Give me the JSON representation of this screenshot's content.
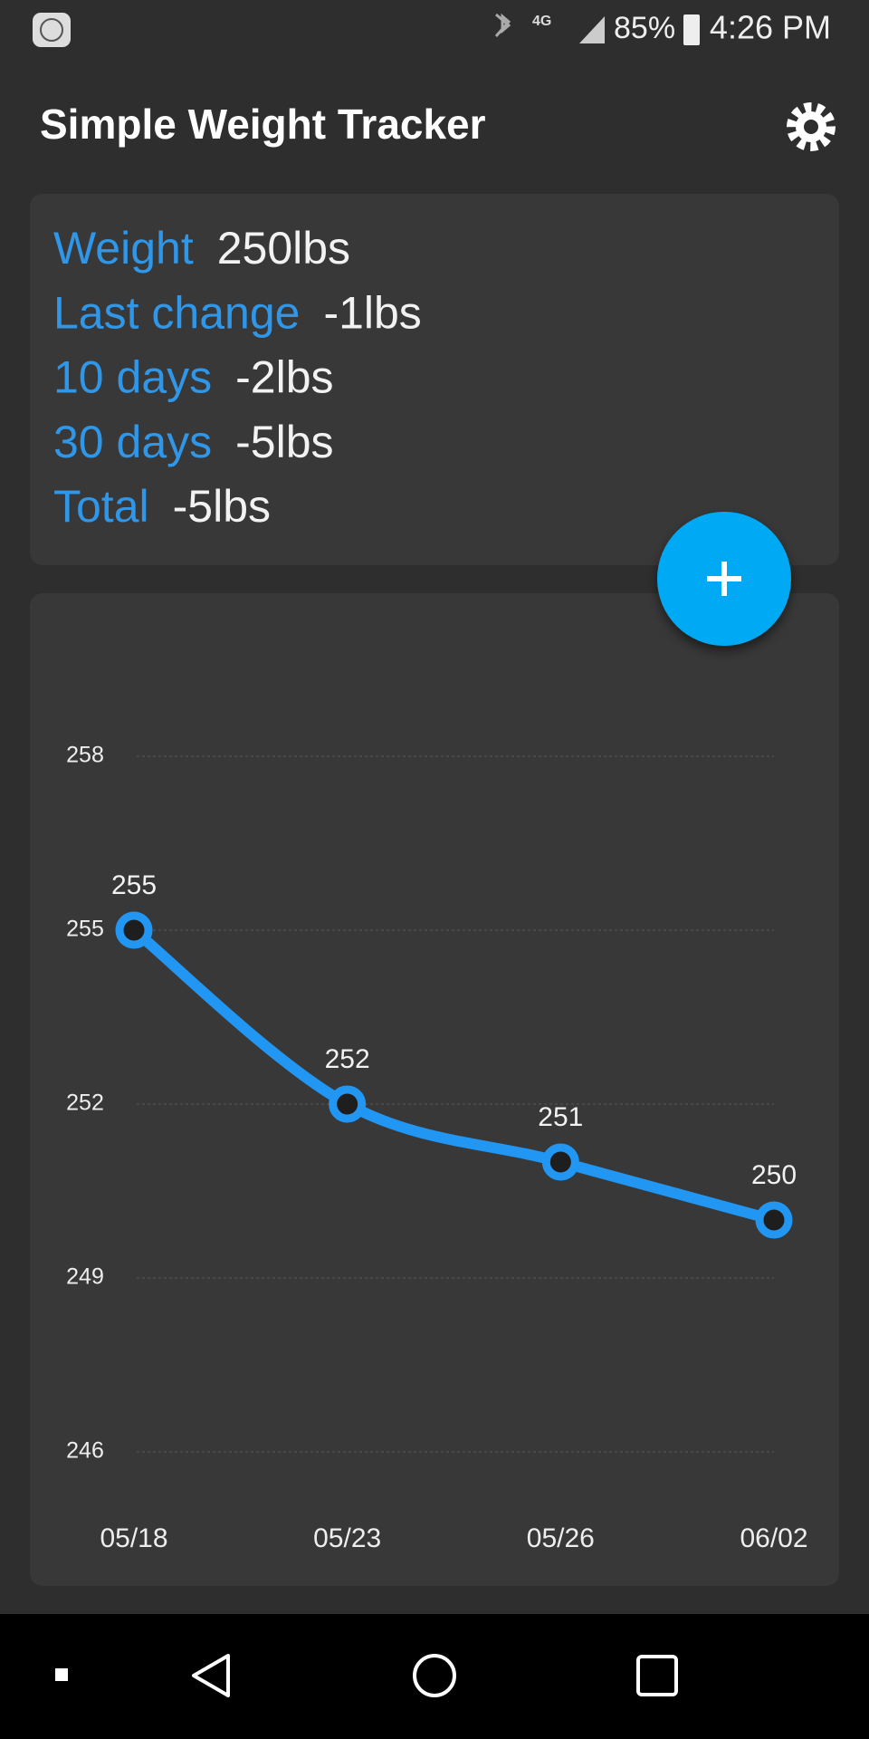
{
  "status_bar": {
    "battery": "85%",
    "time": "4:26 PM",
    "network": "4G"
  },
  "app_bar": {
    "title": "Simple Weight Tracker"
  },
  "stats": [
    {
      "label": "Weight",
      "value": "250lbs"
    },
    {
      "label": "Last change",
      "value": "-1lbs"
    },
    {
      "label": "10 days",
      "value": "-2lbs"
    },
    {
      "label": "30 days",
      "value": "-5lbs"
    },
    {
      "label": "Total",
      "value": "-5lbs"
    }
  ],
  "chart_data": {
    "type": "line",
    "categories": [
      "05/18",
      "05/23",
      "05/26",
      "06/02"
    ],
    "values": [
      255,
      252,
      251,
      250
    ],
    "color": "#2196f3",
    "ylim": [
      246,
      258
    ],
    "yticks": [
      246,
      249,
      252,
      255,
      258
    ],
    "grid": true
  }
}
